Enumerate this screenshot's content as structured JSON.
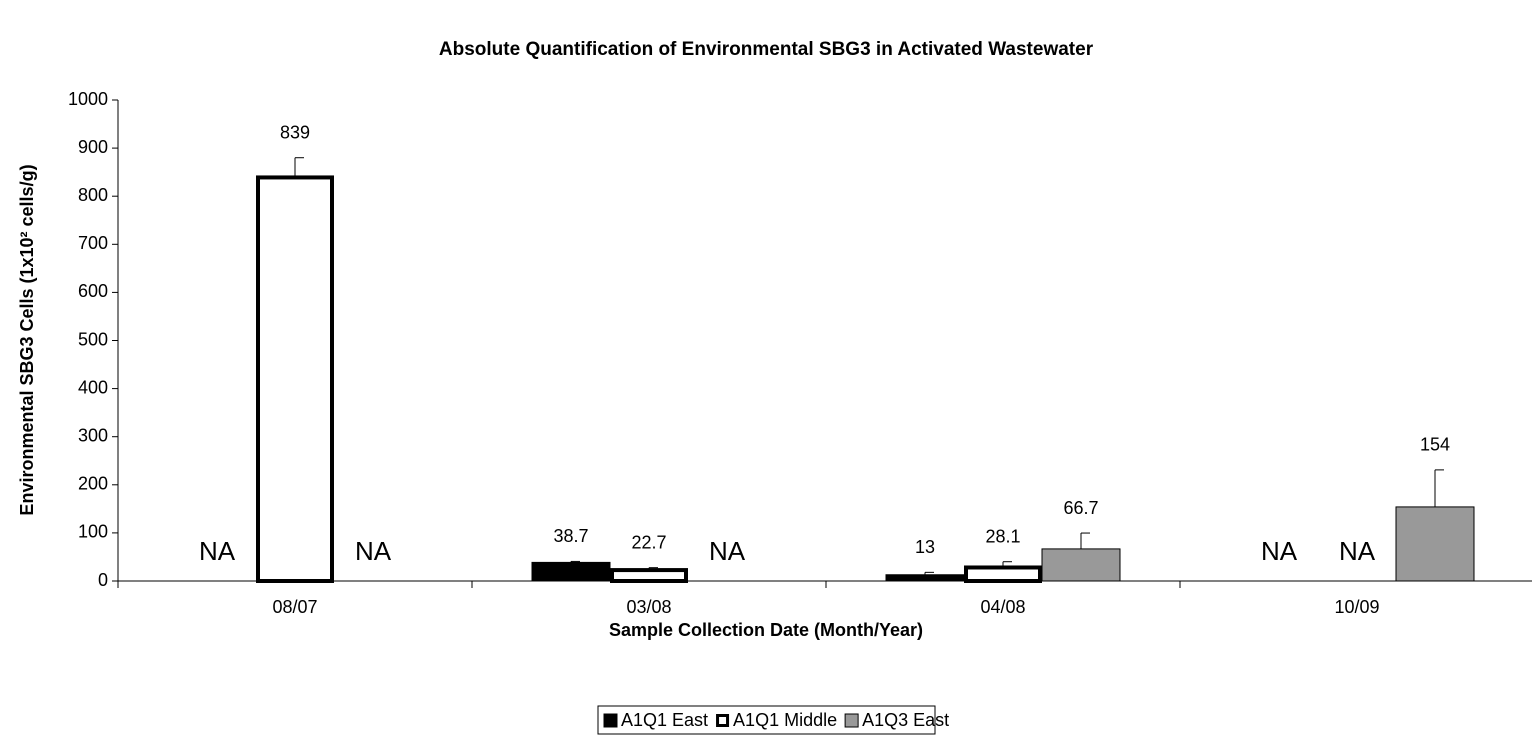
{
  "chart_data": {
    "type": "bar",
    "title": "Absolute Quantification of Environmental SBG3 in Activated Wastewater",
    "x_label": "Sample Collection Date (Month/Year)",
    "y_label": "Environmental SBG3 Cells (1x10² cells/g)",
    "categories": [
      "08/07",
      "03/08",
      "04/08",
      "10/09"
    ],
    "series": [
      {
        "name": "A1Q1 East",
        "color": "#000000",
        "values": [
          null,
          38.7,
          13,
          null
        ],
        "errors": [
          null,
          2,
          5,
          null
        ],
        "value_labels": [
          "NA",
          "38.7",
          "13",
          "NA"
        ]
      },
      {
        "name": "A1Q1 Middle",
        "color": "#ffffff",
        "values": [
          839,
          22.7,
          28.1,
          null
        ],
        "errors": [
          41,
          5,
          12,
          null
        ],
        "value_labels": [
          "839",
          "22.7",
          "28.1",
          "NA"
        ]
      },
      {
        "name": "A1Q3 East",
        "color": "#999999",
        "values": [
          null,
          null,
          66.7,
          154
        ],
        "errors": [
          null,
          null,
          33,
          77
        ],
        "value_labels": [
          "NA",
          "NA",
          "66.7",
          "154"
        ]
      }
    ],
    "ylim": [
      0,
      1000
    ],
    "yticks": [
      0,
      100,
      200,
      300,
      400,
      500,
      600,
      700,
      800,
      900,
      1000
    ],
    "grid": false,
    "legend": "bottom"
  }
}
